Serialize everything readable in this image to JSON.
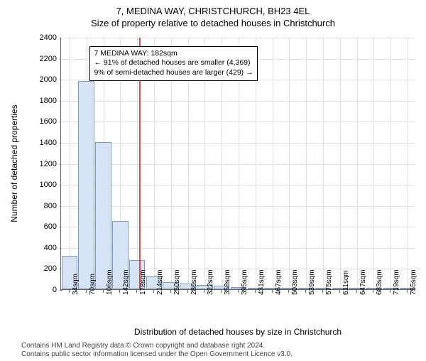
{
  "title_main": "7, MEDINA WAY, CHRISTCHURCH, BH23 4EL",
  "title_sub": "Size of property relative to detached houses in Christchurch",
  "chart": {
    "type": "bar",
    "xlabel": "Distribution of detached houses by size in Christchurch",
    "ylabel": "Number of detached properties",
    "ylim": [
      0,
      2400
    ],
    "ytick_step": 200,
    "x_categories": [
      "34sqm",
      "70sqm",
      "106sqm",
      "142sqm",
      "178sqm",
      "214sqm",
      "250sqm",
      "286sqm",
      "322sqm",
      "358sqm",
      "395sqm",
      "431sqm",
      "467sqm",
      "503sqm",
      "539sqm",
      "575sqm",
      "611sqm",
      "647sqm",
      "683sqm",
      "719sqm",
      "755sqm"
    ],
    "values": [
      320,
      1980,
      1400,
      650,
      280,
      120,
      70,
      55,
      40,
      35,
      20,
      10,
      8,
      6,
      5,
      4,
      3,
      2,
      2,
      1,
      1
    ],
    "bar_fill": "#d6e3f5",
    "bar_border": "#7a9bc9",
    "grid_color": "#e0e0e0",
    "background_color": "#ffffff",
    "title_fontsize": 13,
    "label_fontsize": 12,
    "tick_fontsize": 11,
    "xtick_fontsize": 10,
    "xtick_rotation": -90,
    "vline": {
      "position_index": 4.1,
      "color": "#d94a4a"
    },
    "annotation": {
      "lines": [
        "7 MEDINA WAY: 182sqm",
        "← 91% of detached houses are smaller (4,369)",
        "9% of semi-detached houses are larger (429) →"
      ],
      "left_cat_index": 1.2,
      "top_value": 2320,
      "border_color": "#000000",
      "fontsize": 10.5
    }
  },
  "footer": {
    "line1": "Contains HM Land Registry data © Crown copyright and database right 2024.",
    "line2": "Contains public sector information licensed under the Open Government Licence v3.0."
  }
}
